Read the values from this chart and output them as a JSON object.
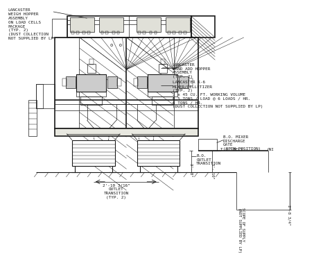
{
  "bg_color": "#ffffff",
  "line_color": "#1a1a1a",
  "text_color": "#1a1a1a",
  "lw_main": 1.2,
  "lw_med": 0.8,
  "lw_thin": 0.5,
  "lw_xtra": 0.35,
  "annotations": {
    "top_left": "LANCASTER\nWEIGH HOPPER\nASSEMBLY\nON LOAD CELLS\nPACKAGE\n(TYP. 2)\n(DUST COLLECTION\nNOT SUPPLIED BY LP)",
    "hand_add": "LANCASTER\nHAND ADD HOPPER\nASSEMBLY\n(TYP. 2)",
    "mixer": "LANCASTER K-6\nMIXER/PELLETIZER\n(TYP. 2)\n2 x 45 CU. FT. WORKING VOLUME\n0.5 TONS / LOAD @ 6 LOADS / HR.\n6 TONS / HR.\n(DUST COLLECTION NOT SUPPLIED BY LP)",
    "bo_gate": "B.O. MIXER\nDISCHARGE\nGATE\n(OPEN POSITION)",
    "bo_outlet": "B.O.\nOUTLET\nTRANSITION",
    "to_belt": "T.O. BELT",
    "ni": "(NI",
    "dim_bottom": "2'-10 3/16\"",
    "outlet_trans": "OUTLET\nTRANSITION\n(TYP. 2)",
    "scope": "SCOPE OF SUPPLY\n(NOT SUPPLIED BY LP)",
    "dim_38": "3'- 8\"",
    "dim_310": "3'- 10\"",
    "dim_2834": "2'-8 3/4\""
  }
}
